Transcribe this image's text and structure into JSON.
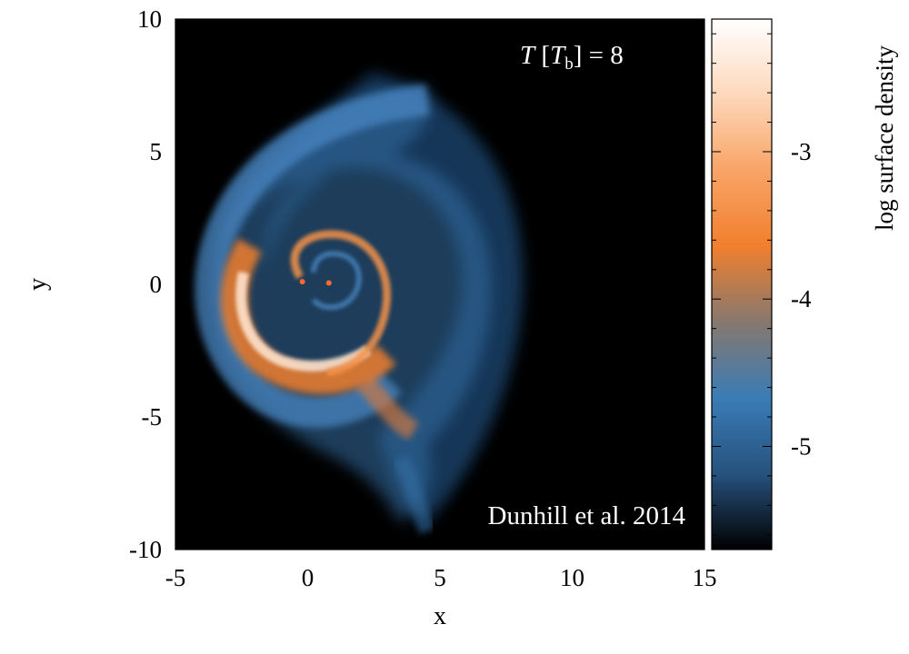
{
  "chart_data": {
    "type": "heatmap",
    "title": "",
    "xlabel": "x",
    "ylabel": "y",
    "xlim": [
      -5,
      15
    ],
    "ylim": [
      -10,
      10
    ],
    "x_ticks": [
      -5,
      0,
      5,
      10,
      15
    ],
    "y_ticks": [
      -10,
      -5,
      0,
      5,
      10
    ],
    "x_tick_labels": [
      "-5",
      "0",
      "5",
      "10",
      "15"
    ],
    "y_tick_labels": [
      "-10",
      "-5",
      "0",
      "5",
      "10"
    ],
    "background_color": "#000000",
    "colorbar": {
      "label": "log surface density",
      "range": [
        -5.7,
        -2.1
      ],
      "ticks": [
        -5,
        -4,
        -3
      ],
      "tick_labels": [
        "-5",
        "-4",
        "-3"
      ],
      "colormap": [
        "#000000",
        "#27527e",
        "#3a7cb6",
        "#86786e",
        "#f07f2e",
        "#f9a466",
        "#fdd8bb",
        "#ffffff"
      ]
    },
    "annotations": {
      "time": {
        "italic_T": "T",
        "open": " [",
        "italic_T2": "T",
        "subscript": "b",
        "close": "] = 8"
      },
      "credit": "Dunhill et al. 2014"
    },
    "point_sources": [
      {
        "x": -0.2,
        "y": 0.1,
        "color": "#ff6a2a"
      },
      {
        "x": 0.8,
        "y": 0.05,
        "color": "#ff6a2a"
      }
    ]
  }
}
